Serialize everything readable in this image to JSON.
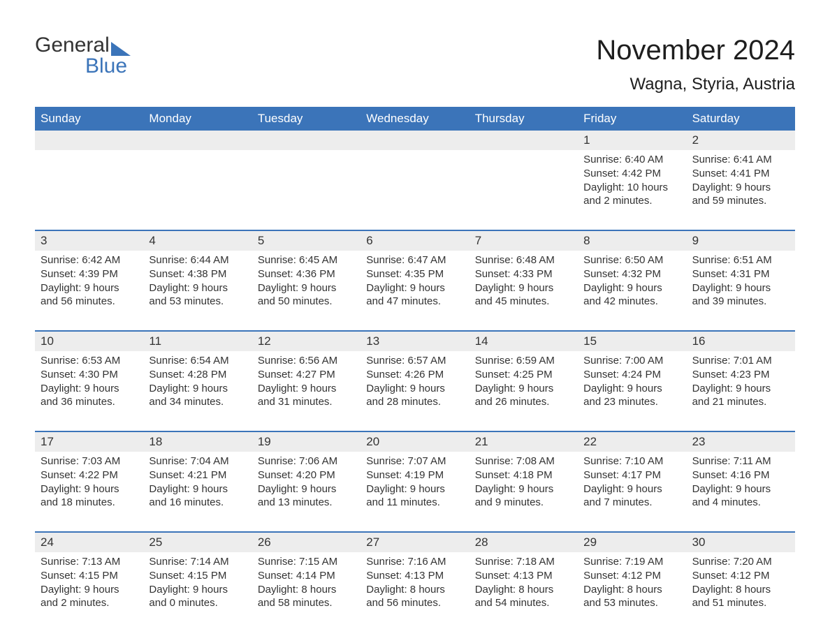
{
  "logo": {
    "text_general": "General",
    "text_blue": "Blue",
    "shape_color": "#3b74b9"
  },
  "header": {
    "month_title": "November 2024",
    "location": "Wagna, Styria, Austria"
  },
  "styling": {
    "brand_blue": "#3b74b9",
    "header_bg": "#3b74b9",
    "header_text": "#ffffff",
    "daynum_bg": "#ededed",
    "body_bg": "#ffffff",
    "text_color": "#333333",
    "row_border": "#3b74b9",
    "body_fontsize": 15,
    "daynum_fontsize": 17,
    "weekday_fontsize": 17,
    "title_fontsize": 40,
    "location_fontsize": 24
  },
  "calendar": {
    "weekdays": [
      "Sunday",
      "Monday",
      "Tuesday",
      "Wednesday",
      "Thursday",
      "Friday",
      "Saturday"
    ],
    "weeks": [
      [
        null,
        null,
        null,
        null,
        null,
        {
          "day": "1",
          "sunrise": "Sunrise: 6:40 AM",
          "sunset": "Sunset: 4:42 PM",
          "daylight1": "Daylight: 10 hours",
          "daylight2": "and 2 minutes."
        },
        {
          "day": "2",
          "sunrise": "Sunrise: 6:41 AM",
          "sunset": "Sunset: 4:41 PM",
          "daylight1": "Daylight: 9 hours",
          "daylight2": "and 59 minutes."
        }
      ],
      [
        {
          "day": "3",
          "sunrise": "Sunrise: 6:42 AM",
          "sunset": "Sunset: 4:39 PM",
          "daylight1": "Daylight: 9 hours",
          "daylight2": "and 56 minutes."
        },
        {
          "day": "4",
          "sunrise": "Sunrise: 6:44 AM",
          "sunset": "Sunset: 4:38 PM",
          "daylight1": "Daylight: 9 hours",
          "daylight2": "and 53 minutes."
        },
        {
          "day": "5",
          "sunrise": "Sunrise: 6:45 AM",
          "sunset": "Sunset: 4:36 PM",
          "daylight1": "Daylight: 9 hours",
          "daylight2": "and 50 minutes."
        },
        {
          "day": "6",
          "sunrise": "Sunrise: 6:47 AM",
          "sunset": "Sunset: 4:35 PM",
          "daylight1": "Daylight: 9 hours",
          "daylight2": "and 47 minutes."
        },
        {
          "day": "7",
          "sunrise": "Sunrise: 6:48 AM",
          "sunset": "Sunset: 4:33 PM",
          "daylight1": "Daylight: 9 hours",
          "daylight2": "and 45 minutes."
        },
        {
          "day": "8",
          "sunrise": "Sunrise: 6:50 AM",
          "sunset": "Sunset: 4:32 PM",
          "daylight1": "Daylight: 9 hours",
          "daylight2": "and 42 minutes."
        },
        {
          "day": "9",
          "sunrise": "Sunrise: 6:51 AM",
          "sunset": "Sunset: 4:31 PM",
          "daylight1": "Daylight: 9 hours",
          "daylight2": "and 39 minutes."
        }
      ],
      [
        {
          "day": "10",
          "sunrise": "Sunrise: 6:53 AM",
          "sunset": "Sunset: 4:30 PM",
          "daylight1": "Daylight: 9 hours",
          "daylight2": "and 36 minutes."
        },
        {
          "day": "11",
          "sunrise": "Sunrise: 6:54 AM",
          "sunset": "Sunset: 4:28 PM",
          "daylight1": "Daylight: 9 hours",
          "daylight2": "and 34 minutes."
        },
        {
          "day": "12",
          "sunrise": "Sunrise: 6:56 AM",
          "sunset": "Sunset: 4:27 PM",
          "daylight1": "Daylight: 9 hours",
          "daylight2": "and 31 minutes."
        },
        {
          "day": "13",
          "sunrise": "Sunrise: 6:57 AM",
          "sunset": "Sunset: 4:26 PM",
          "daylight1": "Daylight: 9 hours",
          "daylight2": "and 28 minutes."
        },
        {
          "day": "14",
          "sunrise": "Sunrise: 6:59 AM",
          "sunset": "Sunset: 4:25 PM",
          "daylight1": "Daylight: 9 hours",
          "daylight2": "and 26 minutes."
        },
        {
          "day": "15",
          "sunrise": "Sunrise: 7:00 AM",
          "sunset": "Sunset: 4:24 PM",
          "daylight1": "Daylight: 9 hours",
          "daylight2": "and 23 minutes."
        },
        {
          "day": "16",
          "sunrise": "Sunrise: 7:01 AM",
          "sunset": "Sunset: 4:23 PM",
          "daylight1": "Daylight: 9 hours",
          "daylight2": "and 21 minutes."
        }
      ],
      [
        {
          "day": "17",
          "sunrise": "Sunrise: 7:03 AM",
          "sunset": "Sunset: 4:22 PM",
          "daylight1": "Daylight: 9 hours",
          "daylight2": "and 18 minutes."
        },
        {
          "day": "18",
          "sunrise": "Sunrise: 7:04 AM",
          "sunset": "Sunset: 4:21 PM",
          "daylight1": "Daylight: 9 hours",
          "daylight2": "and 16 minutes."
        },
        {
          "day": "19",
          "sunrise": "Sunrise: 7:06 AM",
          "sunset": "Sunset: 4:20 PM",
          "daylight1": "Daylight: 9 hours",
          "daylight2": "and 13 minutes."
        },
        {
          "day": "20",
          "sunrise": "Sunrise: 7:07 AM",
          "sunset": "Sunset: 4:19 PM",
          "daylight1": "Daylight: 9 hours",
          "daylight2": "and 11 minutes."
        },
        {
          "day": "21",
          "sunrise": "Sunrise: 7:08 AM",
          "sunset": "Sunset: 4:18 PM",
          "daylight1": "Daylight: 9 hours",
          "daylight2": "and 9 minutes."
        },
        {
          "day": "22",
          "sunrise": "Sunrise: 7:10 AM",
          "sunset": "Sunset: 4:17 PM",
          "daylight1": "Daylight: 9 hours",
          "daylight2": "and 7 minutes."
        },
        {
          "day": "23",
          "sunrise": "Sunrise: 7:11 AM",
          "sunset": "Sunset: 4:16 PM",
          "daylight1": "Daylight: 9 hours",
          "daylight2": "and 4 minutes."
        }
      ],
      [
        {
          "day": "24",
          "sunrise": "Sunrise: 7:13 AM",
          "sunset": "Sunset: 4:15 PM",
          "daylight1": "Daylight: 9 hours",
          "daylight2": "and 2 minutes."
        },
        {
          "day": "25",
          "sunrise": "Sunrise: 7:14 AM",
          "sunset": "Sunset: 4:15 PM",
          "daylight1": "Daylight: 9 hours",
          "daylight2": "and 0 minutes."
        },
        {
          "day": "26",
          "sunrise": "Sunrise: 7:15 AM",
          "sunset": "Sunset: 4:14 PM",
          "daylight1": "Daylight: 8 hours",
          "daylight2": "and 58 minutes."
        },
        {
          "day": "27",
          "sunrise": "Sunrise: 7:16 AM",
          "sunset": "Sunset: 4:13 PM",
          "daylight1": "Daylight: 8 hours",
          "daylight2": "and 56 minutes."
        },
        {
          "day": "28",
          "sunrise": "Sunrise: 7:18 AM",
          "sunset": "Sunset: 4:13 PM",
          "daylight1": "Daylight: 8 hours",
          "daylight2": "and 54 minutes."
        },
        {
          "day": "29",
          "sunrise": "Sunrise: 7:19 AM",
          "sunset": "Sunset: 4:12 PM",
          "daylight1": "Daylight: 8 hours",
          "daylight2": "and 53 minutes."
        },
        {
          "day": "30",
          "sunrise": "Sunrise: 7:20 AM",
          "sunset": "Sunset: 4:12 PM",
          "daylight1": "Daylight: 8 hours",
          "daylight2": "and 51 minutes."
        }
      ]
    ]
  }
}
